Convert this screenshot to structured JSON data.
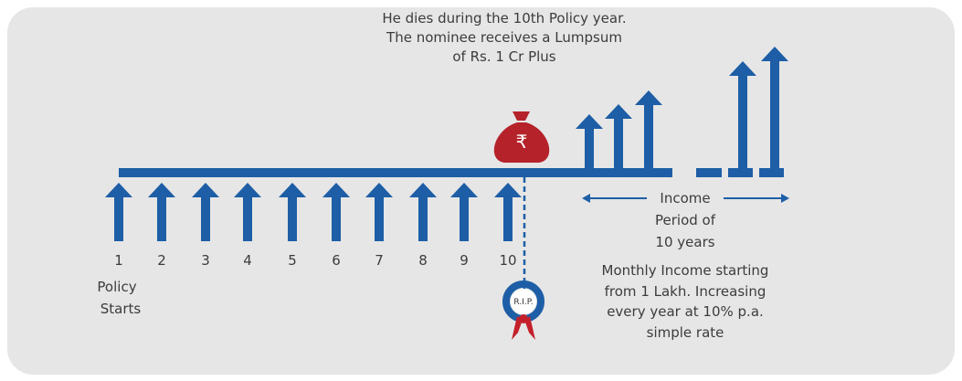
{
  "annotation": {
    "lines": [
      "He dies during the 10th Policy year.",
      "The nominee receives a Lumpsum",
      "of Rs. 1 Cr Plus"
    ]
  },
  "bag_symbol": "₹",
  "years": [
    1,
    2,
    3,
    4,
    5,
    6,
    7,
    8,
    9,
    10
  ],
  "start_label": [
    "Policy",
    "Starts"
  ],
  "wreath_label": "R.I.P.",
  "income_period": [
    "Income",
    "Period of",
    "10 years"
  ],
  "income_note": [
    "Monthly Income starting",
    "from 1 Lakh. Increasing",
    "every year at 10% p.a.",
    "simple rate"
  ]
}
